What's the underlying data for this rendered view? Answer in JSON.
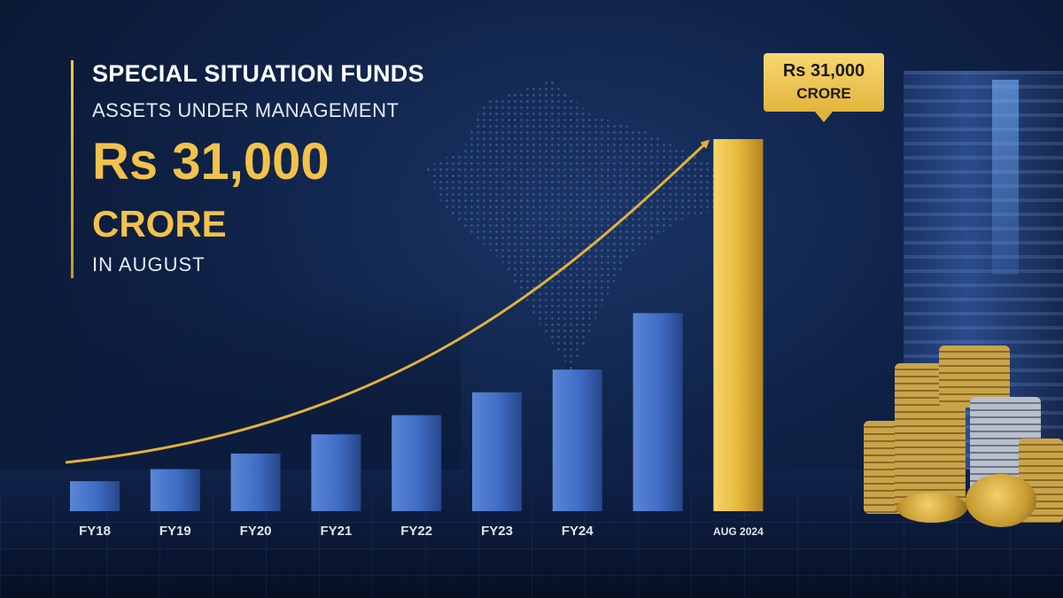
{
  "heading": {
    "title": "SPECIAL SITUATION FUNDS",
    "subtitle": "ASSETS UNDER MANAGEMENT",
    "amount": "Rs 31,000",
    "unit": "CRORE",
    "period": "IN AUGUST"
  },
  "callout": {
    "amount": "Rs 31,000",
    "unit": "CRORE"
  },
  "colors": {
    "bar": "#3f6cc4",
    "highlight_bar": "#e5b93e",
    "trend_arrow": "#e2b13c",
    "accent_text": "#f2c24a"
  },
  "chart_data": {
    "type": "bar",
    "categories": [
      "FY18",
      "FY19",
      "FY20",
      "FY21",
      "FY22",
      "FY23",
      "FY24",
      "",
      "AUG 2024"
    ],
    "values": [
      2500,
      3500,
      4800,
      6400,
      8000,
      9900,
      11800,
      16500,
      31000
    ],
    "highlight_index": 8,
    "ylim": [
      0,
      31000
    ],
    "grid": false,
    "trend_arrow": true
  }
}
